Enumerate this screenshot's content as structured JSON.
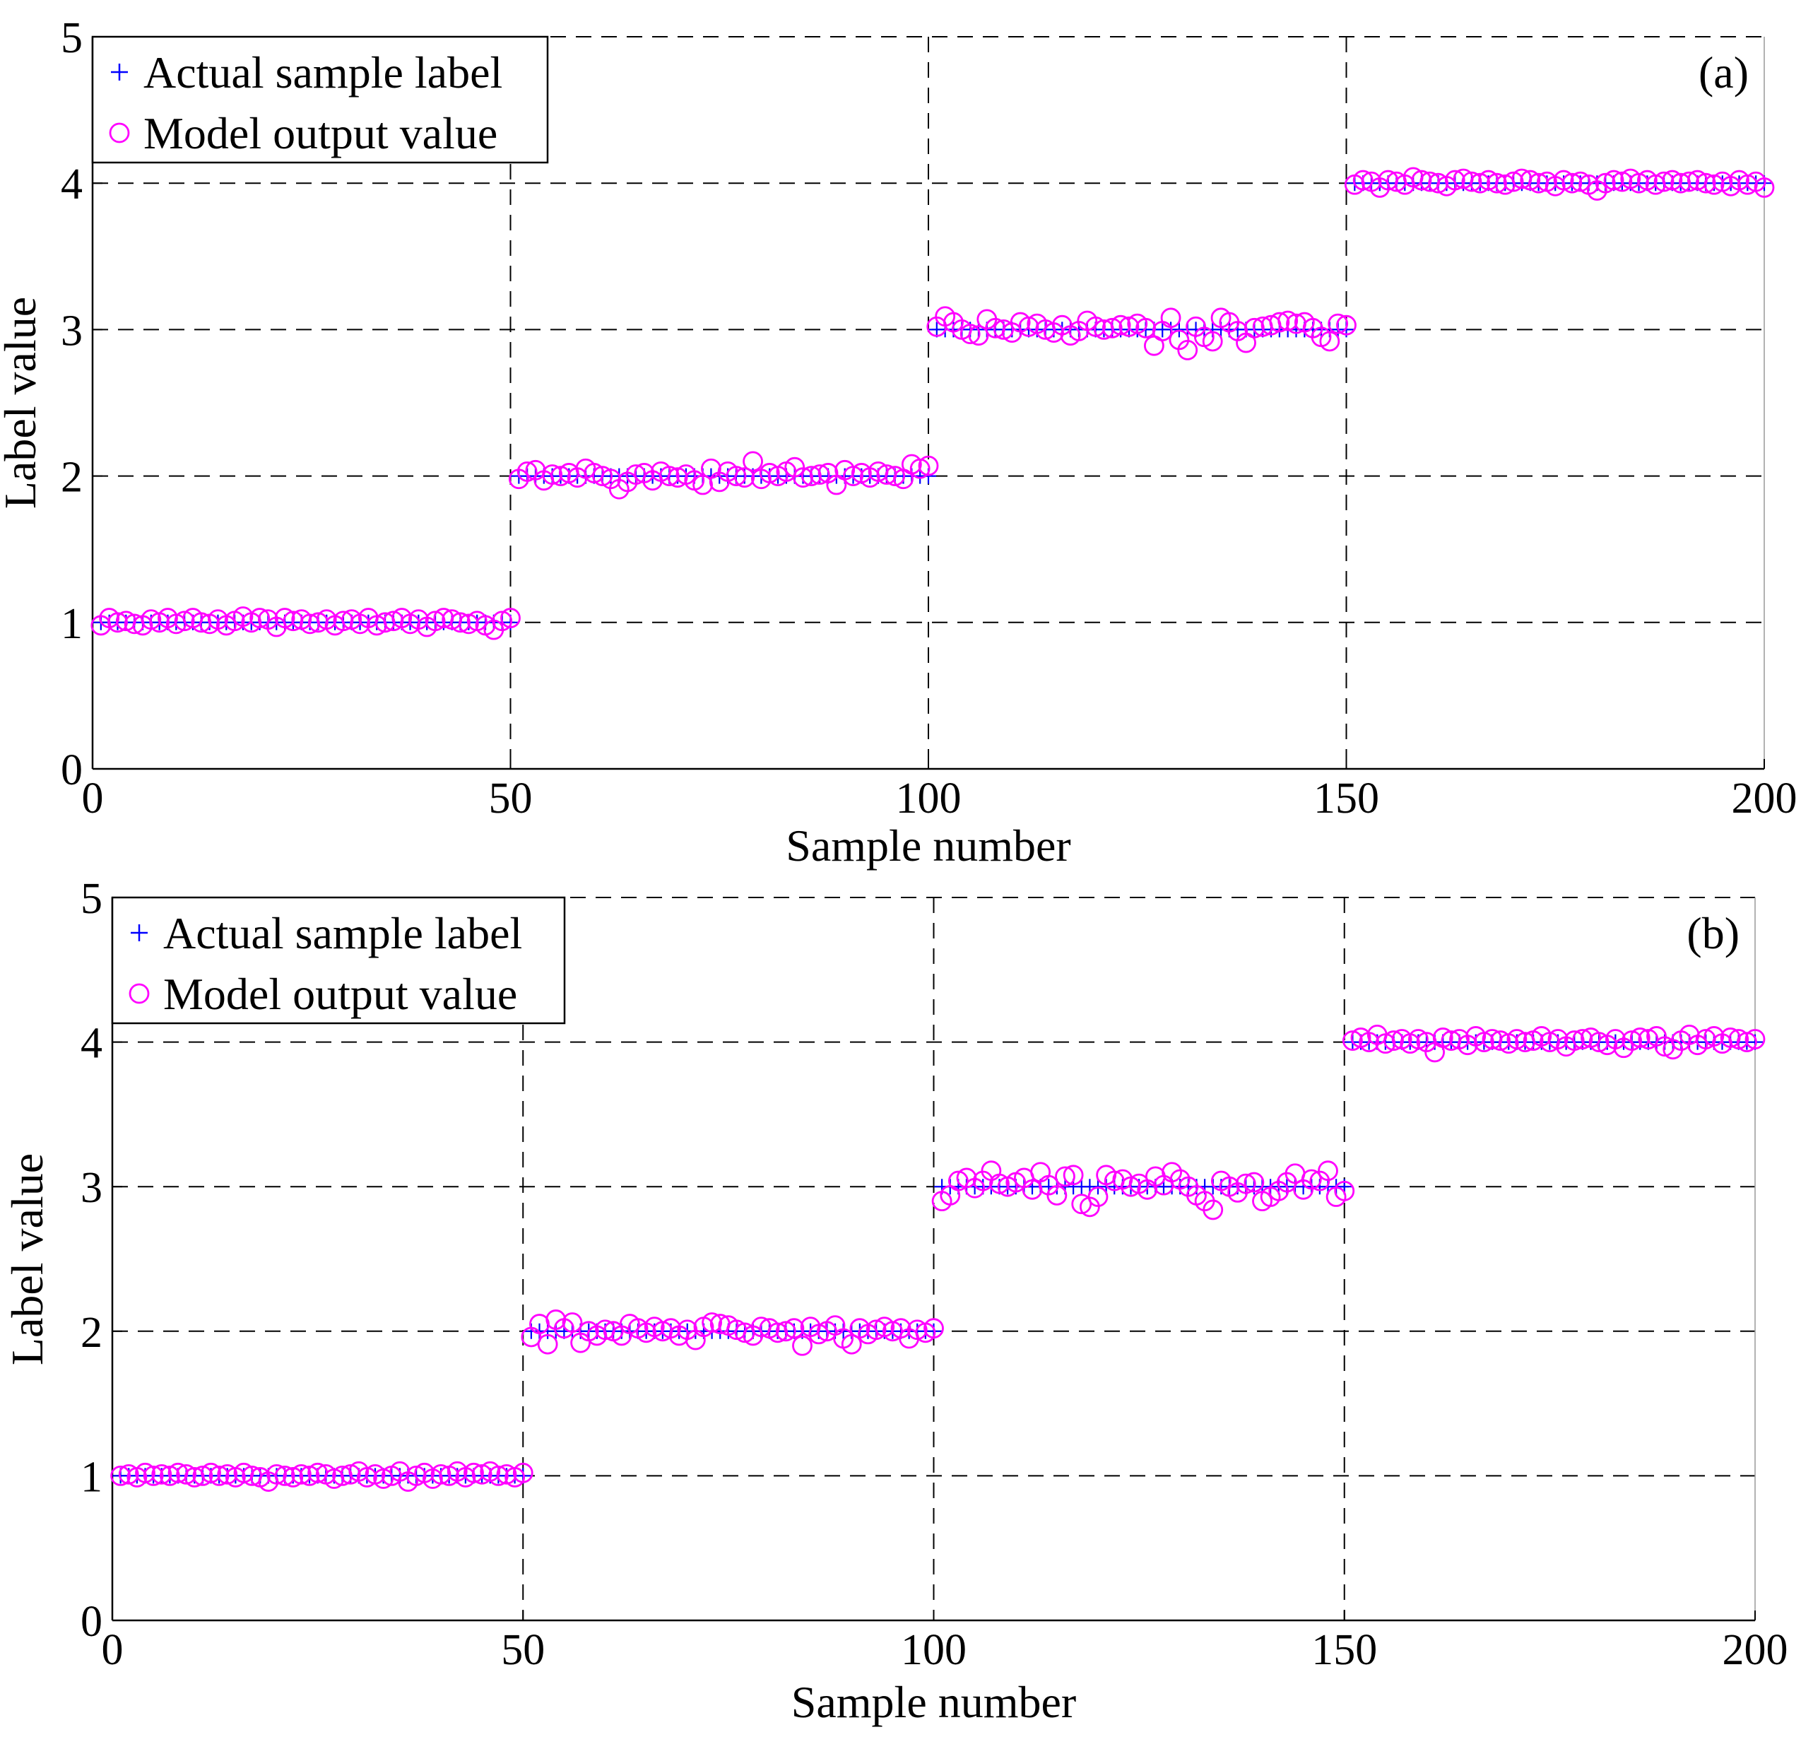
{
  "chart_data": [
    {
      "type": "scatter",
      "panel_label": "(a)",
      "xlabel": "Sample number",
      "ylabel": "Label value",
      "xlim": [
        0,
        200
      ],
      "ylim": [
        0,
        5
      ],
      "xticks": [
        0,
        50,
        100,
        150,
        200
      ],
      "yticks": [
        0,
        1,
        2,
        3,
        4,
        5
      ],
      "grid": "dashed at ticks",
      "legend": {
        "position": "top-left",
        "entries": [
          {
            "label": "Actual sample label",
            "marker": "+",
            "color": "#0000ff"
          },
          {
            "label": "Model output value",
            "marker": "o",
            "color": "#ff00ff"
          }
        ]
      },
      "series": [
        {
          "name": "Actual sample label",
          "marker": "+",
          "color": "#0000ff",
          "classes": [
            {
              "range": [
                1,
                50
              ],
              "value": 1
            },
            {
              "range": [
                51,
                100
              ],
              "value": 2
            },
            {
              "range": [
                101,
                150
              ],
              "value": 3
            },
            {
              "range": [
                151,
                200
              ],
              "value": 4
            }
          ]
        },
        {
          "name": "Model output value",
          "marker": "o",
          "color": "#ff00ff",
          "values": [
            0.98,
            1.03,
            1.0,
            1.01,
            0.99,
            0.98,
            1.02,
            1.0,
            1.03,
            0.99,
            1.01,
            1.03,
            1.0,
            0.99,
            1.02,
            0.98,
            1.01,
            1.04,
            1.0,
            1.03,
            1.02,
            0.97,
            1.03,
            1.01,
            1.02,
            0.99,
            1.0,
            1.02,
            0.98,
            1.01,
            1.02,
            0.99,
            1.03,
            0.98,
            1.0,
            1.01,
            1.03,
            0.99,
            1.02,
            0.97,
            1.01,
            1.03,
            1.02,
            1.0,
            0.99,
            1.01,
            0.98,
            0.95,
            1.01,
            1.03,
            1.98,
            2.03,
            2.04,
            1.97,
            2.01,
            2.0,
            2.02,
            1.99,
            2.05,
            2.02,
            2.0,
            1.98,
            1.91,
            1.96,
            2.01,
            2.02,
            1.97,
            2.03,
            2.0,
            1.99,
            2.01,
            1.97,
            1.94,
            2.05,
            1.96,
            2.03,
            2.0,
            1.99,
            2.1,
            1.98,
            2.02,
            2.0,
            2.03,
            2.06,
            1.99,
            2.0,
            2.01,
            2.02,
            1.94,
            2.04,
            2.0,
            2.02,
            1.99,
            2.03,
            2.01,
            2.0,
            1.98,
            2.08,
            2.05,
            2.07,
            3.02,
            3.09,
            3.05,
            3.0,
            2.97,
            2.96,
            3.07,
            3.01,
            3.0,
            2.98,
            3.05,
            3.02,
            3.04,
            3.0,
            2.98,
            3.03,
            2.96,
            2.99,
            3.06,
            3.02,
            3.0,
            3.01,
            3.03,
            3.02,
            3.04,
            3.01,
            2.89,
            2.99,
            3.08,
            2.93,
            2.86,
            3.02,
            2.95,
            2.92,
            3.08,
            3.05,
            2.99,
            2.91,
            3.01,
            3.02,
            3.03,
            3.05,
            3.06,
            3.04,
            3.05,
            3.01,
            2.95,
            2.92,
            3.04,
            3.03,
            3.99,
            4.02,
            4.01,
            3.97,
            4.02,
            4.01,
            3.99,
            4.04,
            4.02,
            4.01,
            4.0,
            3.98,
            4.02,
            4.03,
            4.01,
            4.0,
            4.02,
            4.0,
            3.99,
            4.01,
            4.03,
            4.02,
            4.0,
            4.01,
            3.98,
            4.02,
            4.0,
            4.01,
            3.99,
            3.95,
            4.0,
            4.02,
            4.01,
            4.03,
            4.0,
            4.02,
            3.99,
            4.01,
            4.02,
            4.0,
            4.01,
            4.02,
            4.0,
            3.99,
            4.01,
            3.98,
            4.02,
            3.99,
            4.01,
            3.97
          ]
        }
      ]
    },
    {
      "type": "scatter",
      "panel_label": "(b)",
      "xlabel": "Sample number",
      "ylabel": "Label value",
      "xlim": [
        0,
        200
      ],
      "ylim": [
        0,
        5
      ],
      "xticks": [
        0,
        50,
        100,
        150,
        200
      ],
      "yticks": [
        0,
        1,
        2,
        3,
        4,
        5
      ],
      "grid": "dashed at ticks",
      "legend": {
        "position": "top-left",
        "entries": [
          {
            "label": "Actual sample label",
            "marker": "+",
            "color": "#0000ff"
          },
          {
            "label": "Model output value",
            "marker": "o",
            "color": "#ff00ff"
          }
        ]
      },
      "series": [
        {
          "name": "Actual sample label",
          "marker": "+",
          "color": "#0000ff",
          "classes": [
            {
              "range": [
                1,
                50
              ],
              "value": 1
            },
            {
              "range": [
                51,
                100
              ],
              "value": 2
            },
            {
              "range": [
                101,
                150
              ],
              "value": 3
            },
            {
              "range": [
                151,
                200
              ],
              "value": 4
            }
          ]
        },
        {
          "name": "Model output value",
          "marker": "o",
          "color": "#ff00ff",
          "values": [
            1.0,
            1.01,
            0.99,
            1.02,
            1.0,
            1.01,
            1.0,
            1.02,
            1.01,
            0.99,
            1.0,
            1.02,
            1.0,
            1.01,
            0.99,
            1.02,
            1.0,
            0.99,
            0.96,
            1.01,
            1.0,
            0.99,
            1.01,
            1.0,
            1.02,
            1.01,
            0.98,
            1.0,
            1.01,
            1.03,
            0.99,
            1.01,
            0.98,
            1.0,
            1.03,
            0.96,
            1.0,
            1.02,
            0.98,
            1.01,
            1.0,
            1.03,
            0.99,
            1.02,
            1.01,
            1.03,
            1.0,
            1.01,
            0.99,
            1.02,
            1.96,
            2.05,
            1.91,
            2.08,
            2.02,
            2.06,
            1.92,
            2.0,
            1.97,
            2.01,
            2.0,
            1.97,
            2.05,
            2.02,
            1.99,
            2.03,
            2.0,
            2.02,
            1.97,
            2.01,
            1.94,
            2.03,
            2.06,
            2.05,
            2.04,
            2.01,
            1.99,
            1.97,
            2.03,
            2.02,
            1.99,
            2.0,
            2.02,
            1.9,
            2.03,
            1.98,
            2.0,
            2.04,
            1.95,
            1.91,
            2.02,
            1.98,
            2.01,
            2.03,
            2.0,
            2.02,
            1.95,
            2.01,
            1.99,
            2.02,
            2.9,
            2.94,
            3.04,
            3.06,
            2.99,
            3.04,
            3.11,
            3.02,
            3.0,
            3.03,
            3.06,
            2.98,
            3.1,
            3.01,
            2.94,
            3.07,
            3.08,
            2.88,
            2.86,
            2.93,
            3.08,
            3.04,
            3.05,
            3.0,
            3.02,
            2.98,
            3.07,
            3.01,
            3.1,
            3.05,
            3.0,
            2.94,
            2.9,
            2.84,
            3.04,
            3.0,
            2.96,
            3.02,
            3.03,
            2.9,
            2.93,
            2.97,
            3.03,
            3.09,
            2.98,
            3.05,
            3.04,
            3.11,
            2.93,
            2.97,
            4.01,
            4.03,
            4.0,
            4.05,
            3.99,
            4.01,
            4.02,
            3.99,
            4.02,
            4.0,
            3.93,
            4.03,
            4.01,
            4.02,
            3.98,
            4.04,
            4.0,
            4.02,
            4.01,
            3.99,
            4.02,
            4.0,
            4.01,
            4.04,
            4.0,
            4.02,
            3.97,
            4.01,
            4.02,
            4.03,
            4.0,
            3.98,
            4.02,
            3.96,
            4.01,
            4.03,
            4.02,
            4.04,
            3.97,
            3.95,
            4.01,
            4.05,
            3.98,
            4.02,
            4.04,
            3.99,
            4.03,
            4.02,
            4.0,
            4.02
          ]
        }
      ]
    }
  ]
}
